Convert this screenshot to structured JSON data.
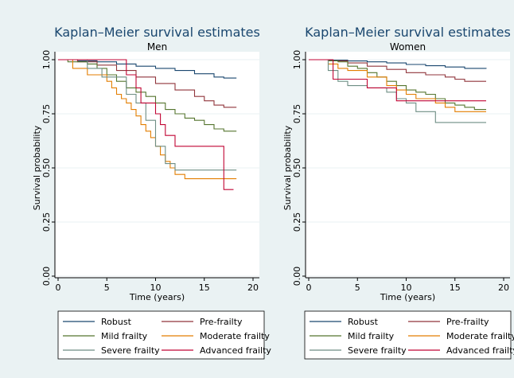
{
  "legend_labels": [
    "Robust",
    "Pre-frailty",
    "Mild frailty",
    "Moderate frailty",
    "Severe frailty",
    "Advanced frailty"
  ],
  "colors": {
    "outer_bg": "#eaf2f3",
    "plot_bg": "#ffffff",
    "gridline": "#eaf2f3",
    "title": "#1a476f",
    "axis": "#000000",
    "series": {
      "Robust": "#1a476f",
      "Pre-frailty": "#90353b",
      "Mild frailty": "#55752f",
      "Moderate frailty": "#e37e00",
      "Severe frailty": "#6e8e84",
      "Advanced frailty": "#c10534"
    }
  },
  "chart_data": [
    {
      "type": "line",
      "title": "Kaplan–Meier survival estimates",
      "subtitle": "Men",
      "xlabel": "Time (years)",
      "ylabel": "Survival probability",
      "xlim": [
        0,
        20
      ],
      "ylim": [
        0,
        1
      ],
      "xticks": [
        "0",
        "5",
        "10",
        "15",
        "20"
      ],
      "yticks": [
        "0.00",
        "0.25",
        "0.50",
        "0.75",
        "1.00"
      ],
      "grid": true,
      "legend_position": "bottom",
      "series": [
        {
          "name": "Robust",
          "x": [
            0,
            2,
            4,
            6,
            8,
            10,
            12,
            14,
            16,
            17,
            18.3
          ],
          "y": [
            1.0,
            0.995,
            0.99,
            0.98,
            0.97,
            0.96,
            0.95,
            0.935,
            0.92,
            0.915,
            0.915
          ]
        },
        {
          "name": "Pre-frailty",
          "x": [
            0,
            2,
            4,
            6,
            8,
            10,
            12,
            14,
            15,
            16,
            17,
            18.3
          ],
          "y": [
            1.0,
            0.99,
            0.975,
            0.95,
            0.92,
            0.89,
            0.86,
            0.83,
            0.81,
            0.79,
            0.78,
            0.78
          ]
        },
        {
          "name": "Mild frailty",
          "x": [
            0,
            1,
            3,
            4,
            5,
            6,
            7,
            8,
            9,
            10,
            11,
            12,
            13,
            14,
            15,
            16,
            17,
            18.3
          ],
          "y": [
            1.0,
            0.99,
            0.98,
            0.96,
            0.93,
            0.9,
            0.87,
            0.85,
            0.83,
            0.8,
            0.77,
            0.75,
            0.73,
            0.72,
            0.7,
            0.68,
            0.67,
            0.67
          ]
        },
        {
          "name": "Moderate frailty",
          "x": [
            0,
            1.5,
            3,
            3.5,
            5,
            5.5,
            6,
            6.5,
            7,
            7.5,
            8,
            8.5,
            9,
            9.5,
            10,
            10.5,
            11,
            11.5,
            12,
            13,
            14,
            16,
            18.3
          ],
          "y": [
            1.0,
            0.96,
            0.93,
            0.93,
            0.9,
            0.87,
            0.84,
            0.82,
            0.8,
            0.77,
            0.74,
            0.7,
            0.67,
            0.64,
            0.6,
            0.56,
            0.53,
            0.5,
            0.47,
            0.45,
            0.45,
            0.45,
            0.45
          ]
        },
        {
          "name": "Severe frailty",
          "x": [
            0,
            3,
            4.5,
            5,
            7,
            8,
            9,
            10,
            11,
            12,
            14,
            16,
            18.3
          ],
          "y": [
            1.0,
            0.96,
            0.92,
            0.92,
            0.84,
            0.8,
            0.72,
            0.6,
            0.52,
            0.49,
            0.49,
            0.49,
            0.49
          ]
        },
        {
          "name": "Advanced frailty",
          "x": [
            0,
            6.5,
            7,
            8,
            8.5,
            9.5,
            10,
            10.5,
            11,
            12,
            14,
            16,
            17,
            18
          ],
          "y": [
            1.0,
            1.0,
            0.93,
            0.87,
            0.8,
            0.8,
            0.75,
            0.7,
            0.65,
            0.6,
            0.6,
            0.6,
            0.4,
            0.4
          ]
        }
      ]
    },
    {
      "type": "line",
      "title": "Kaplan–Meier survival estimates",
      "subtitle": "Women",
      "xlabel": "Time (years)",
      "ylabel": "Survival probability",
      "xlim": [
        0,
        20
      ],
      "ylim": [
        0,
        1
      ],
      "xticks": [
        "0",
        "5",
        "10",
        "15",
        "20"
      ],
      "yticks": [
        "0.00",
        "0.25",
        "0.50",
        "0.75",
        "1.00"
      ],
      "grid": true,
      "legend_position": "bottom",
      "series": [
        {
          "name": "Robust",
          "x": [
            0,
            2,
            4,
            6,
            8,
            10,
            12,
            14,
            16,
            18.2
          ],
          "y": [
            1.0,
            0.998,
            0.994,
            0.99,
            0.985,
            0.978,
            0.972,
            0.966,
            0.96,
            0.958
          ]
        },
        {
          "name": "Pre-frailty",
          "x": [
            0,
            2,
            4,
            6,
            8,
            10,
            12,
            14,
            15,
            16,
            17,
            18.2
          ],
          "y": [
            1.0,
            0.995,
            0.985,
            0.97,
            0.955,
            0.94,
            0.93,
            0.92,
            0.91,
            0.9,
            0.9,
            0.9
          ]
        },
        {
          "name": "Mild frailty",
          "x": [
            0,
            2,
            3,
            4,
            5,
            6,
            7,
            8,
            9,
            10,
            11,
            12,
            13,
            14,
            15,
            16,
            17,
            18.2
          ],
          "y": [
            1.0,
            0.995,
            0.99,
            0.97,
            0.96,
            0.94,
            0.92,
            0.9,
            0.88,
            0.86,
            0.85,
            0.84,
            0.82,
            0.8,
            0.79,
            0.78,
            0.77,
            0.77
          ]
        },
        {
          "name": "Moderate frailty",
          "x": [
            0,
            2,
            3,
            4,
            6,
            8,
            9,
            10,
            11,
            12,
            13,
            14,
            15,
            16,
            18.2
          ],
          "y": [
            1.0,
            0.98,
            0.96,
            0.95,
            0.92,
            0.88,
            0.86,
            0.84,
            0.82,
            0.82,
            0.8,
            0.78,
            0.76,
            0.76,
            0.76
          ]
        },
        {
          "name": "Severe frailty",
          "x": [
            0,
            2,
            3,
            4,
            6,
            8,
            9,
            10,
            11,
            12,
            13,
            14,
            15,
            16,
            18.2
          ],
          "y": [
            1.0,
            0.95,
            0.9,
            0.88,
            0.87,
            0.85,
            0.82,
            0.8,
            0.76,
            0.76,
            0.71,
            0.71,
            0.71,
            0.71,
            0.71
          ]
        },
        {
          "name": "Advanced frailty",
          "x": [
            0,
            2,
            2.5,
            4,
            6,
            8,
            9,
            10,
            12,
            14,
            15,
            16,
            18.2
          ],
          "y": [
            1.0,
            1.0,
            0.91,
            0.91,
            0.87,
            0.87,
            0.81,
            0.81,
            0.81,
            0.81,
            0.81,
            0.81,
            0.81
          ]
        }
      ]
    }
  ]
}
